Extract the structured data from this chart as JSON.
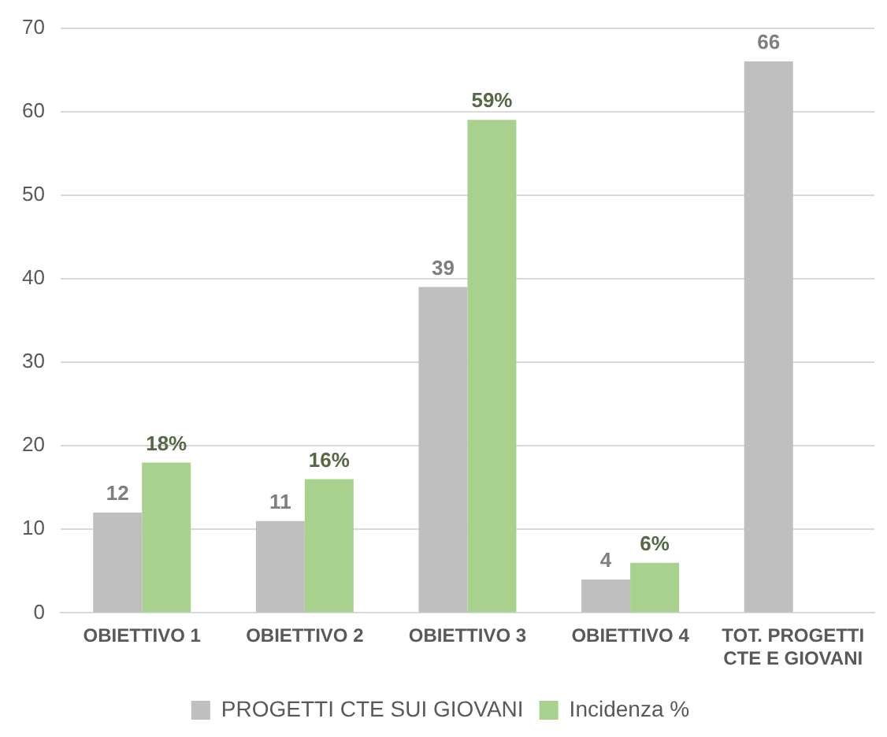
{
  "chart_data": {
    "type": "bar",
    "categories": [
      "OBIETTIVO 1",
      "OBIETTIVO 2",
      "OBIETTIVO 3",
      "OBIETTIVO 4",
      "TOT. PROGETTI CTE E GIOVANI"
    ],
    "series": [
      {
        "name": "PROGETTI CTE SUI GIOVANI",
        "color": "#bfbfbf",
        "values": [
          12,
          11,
          39,
          4,
          66
        ],
        "value_labels": [
          "12",
          "11",
          "39",
          "4",
          "66"
        ]
      },
      {
        "name": "Incidenza %",
        "color": "#a9d18e",
        "values": [
          18,
          16,
          59,
          6,
          null
        ],
        "value_labels": [
          "18%",
          "16%",
          "59%",
          "6%",
          null
        ]
      }
    ],
    "ylim": [
      0,
      70
    ],
    "yticks": [
      0,
      10,
      20,
      30,
      40,
      50,
      60,
      70
    ],
    "grid": "y",
    "legend": "bottom"
  }
}
